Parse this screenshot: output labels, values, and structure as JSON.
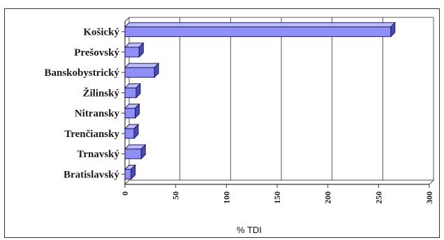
{
  "chart_data": {
    "type": "bar",
    "orientation": "horizontal",
    "categories": [
      "Košický",
      "Prešovský",
      "Banskobystrický",
      "Žilinský",
      "Nitransky",
      "Trenčiansky",
      "Trnavský",
      "Bratislavský"
    ],
    "values": [
      262,
      14,
      29,
      11,
      10,
      9,
      16,
      6
    ],
    "xlabel": "% TDI",
    "ylabel": "",
    "xlim": [
      0,
      300
    ],
    "xticks": [
      "0",
      "50",
      "100",
      "150",
      "200",
      "250",
      "300"
    ],
    "grid": "vertical",
    "style": "3d",
    "colors": {
      "bar": "#8f8ff5",
      "bar_top": "#bcbcff",
      "bar_side": "#4a4ab8",
      "grid": "#555555"
    }
  }
}
